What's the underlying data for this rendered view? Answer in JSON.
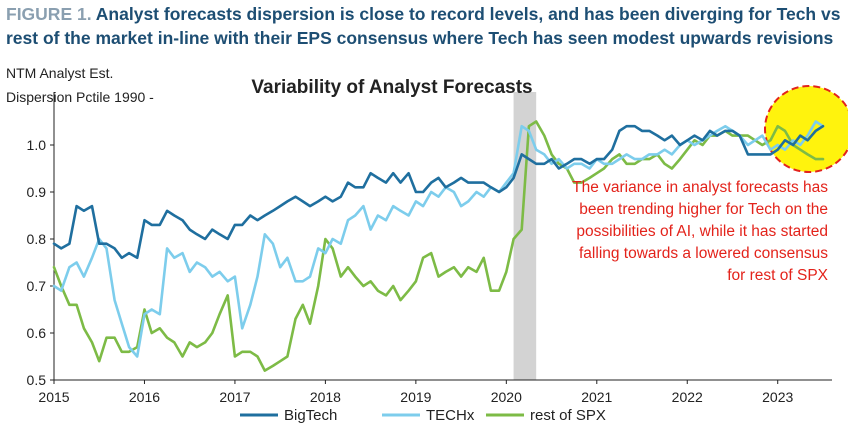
{
  "figure": {
    "label": "FIGURE 1.",
    "caption_line1": "Analyst forecasts dispersion is close to record levels, and has been diverging for Tech vs",
    "caption_line2": "rest of the market in-line with their EPS consensus where Tech has seen modest upwards revisions"
  },
  "colors": {
    "bigtech": "#1f6f9f",
    "techx": "#7dcdec",
    "rest_spx": "#7dbb46",
    "shade": "#d3d3d3",
    "annotation": "#e3231b",
    "highlight": "#fff200",
    "header": "#1d4e73"
  },
  "chart_data": {
    "type": "line",
    "title": "Variability of Analyst Forecasts",
    "ylabel_line1": "NTM Analyst Est.",
    "ylabel_line2": "Dispersion Pctile 1990 -",
    "xlim": [
      2015,
      2023.6
    ],
    "ylim": [
      0.5,
      1.1
    ],
    "yticks": [
      0.5,
      0.6,
      0.7,
      0.8,
      0.9,
      1.0
    ],
    "ytick_labels": [
      "0.5",
      "0.6",
      "0.7",
      "0.8",
      "0.9",
      "1.0"
    ],
    "xticks": [
      2015,
      2016,
      2017,
      2018,
      2019,
      2020,
      2021,
      2022,
      2023
    ],
    "xtick_labels": [
      "2015",
      "2016",
      "2017",
      "2018",
      "2019",
      "2020",
      "2021",
      "2022",
      "2023"
    ],
    "shaded_region": [
      2020.08,
      2020.33
    ],
    "series": [
      {
        "name": "BigTech",
        "color_key": "bigtech",
        "x": [
          2015.0,
          2015.08,
          2015.17,
          2015.25,
          2015.33,
          2015.42,
          2015.5,
          2015.58,
          2015.67,
          2015.75,
          2015.83,
          2015.92,
          2016.0,
          2016.08,
          2016.17,
          2016.25,
          2016.33,
          2016.42,
          2016.5,
          2016.58,
          2016.67,
          2016.75,
          2016.83,
          2016.92,
          2017.0,
          2017.08,
          2017.17,
          2017.25,
          2017.33,
          2017.42,
          2017.5,
          2017.58,
          2017.67,
          2017.75,
          2017.83,
          2017.92,
          2018.0,
          2018.08,
          2018.17,
          2018.25,
          2018.33,
          2018.42,
          2018.5,
          2018.58,
          2018.67,
          2018.75,
          2018.83,
          2018.92,
          2019.0,
          2019.08,
          2019.17,
          2019.25,
          2019.33,
          2019.42,
          2019.5,
          2019.58,
          2019.67,
          2019.75,
          2019.83,
          2019.92,
          2020.0,
          2020.08,
          2020.17,
          2020.25,
          2020.33,
          2020.42,
          2020.5,
          2020.58,
          2020.67,
          2020.75,
          2020.83,
          2020.92,
          2021.0,
          2021.08,
          2021.17,
          2021.25,
          2021.33,
          2021.42,
          2021.5,
          2021.58,
          2021.67,
          2021.75,
          2021.83,
          2021.92,
          2022.0,
          2022.08,
          2022.17,
          2022.25,
          2022.33,
          2022.42,
          2022.5,
          2022.58,
          2022.67,
          2022.75,
          2022.83,
          2022.92,
          2023.0,
          2023.08,
          2023.17,
          2023.25,
          2023.33,
          2023.42,
          2023.5
        ],
        "values": [
          0.79,
          0.78,
          0.79,
          0.87,
          0.86,
          0.87,
          0.79,
          0.79,
          0.78,
          0.76,
          0.77,
          0.76,
          0.84,
          0.83,
          0.83,
          0.86,
          0.85,
          0.84,
          0.82,
          0.81,
          0.8,
          0.82,
          0.81,
          0.8,
          0.83,
          0.83,
          0.85,
          0.84,
          0.85,
          0.86,
          0.87,
          0.88,
          0.89,
          0.88,
          0.87,
          0.88,
          0.89,
          0.88,
          0.89,
          0.92,
          0.91,
          0.91,
          0.94,
          0.93,
          0.92,
          0.94,
          0.92,
          0.94,
          0.9,
          0.9,
          0.92,
          0.93,
          0.91,
          0.92,
          0.93,
          0.92,
          0.92,
          0.92,
          0.91,
          0.9,
          0.91,
          0.93,
          0.98,
          0.97,
          0.96,
          0.96,
          0.97,
          0.95,
          0.96,
          0.97,
          0.97,
          0.96,
          0.97,
          0.97,
          0.99,
          1.03,
          1.04,
          1.04,
          1.03,
          1.03,
          1.02,
          1.01,
          1.02,
          1.0,
          1.01,
          1.02,
          1.01,
          1.03,
          1.02,
          1.03,
          1.03,
          1.02,
          0.98,
          0.98,
          0.98,
          0.98,
          0.99,
          1.01,
          1.0,
          1.02,
          1.01,
          1.03,
          1.04
        ]
      },
      {
        "name": "TECHx",
        "color_key": "techx",
        "x": [
          2015.0,
          2015.08,
          2015.17,
          2015.25,
          2015.33,
          2015.42,
          2015.5,
          2015.58,
          2015.67,
          2015.75,
          2015.83,
          2015.92,
          2016.0,
          2016.08,
          2016.17,
          2016.25,
          2016.33,
          2016.42,
          2016.5,
          2016.58,
          2016.67,
          2016.75,
          2016.83,
          2016.92,
          2017.0,
          2017.08,
          2017.17,
          2017.25,
          2017.33,
          2017.42,
          2017.5,
          2017.58,
          2017.67,
          2017.75,
          2017.83,
          2017.92,
          2018.0,
          2018.08,
          2018.17,
          2018.25,
          2018.33,
          2018.42,
          2018.5,
          2018.58,
          2018.67,
          2018.75,
          2018.83,
          2018.92,
          2019.0,
          2019.08,
          2019.17,
          2019.25,
          2019.33,
          2019.42,
          2019.5,
          2019.58,
          2019.67,
          2019.75,
          2019.83,
          2019.92,
          2020.0,
          2020.08,
          2020.17,
          2020.25,
          2020.33,
          2020.42,
          2020.5,
          2020.58,
          2020.67,
          2020.75,
          2020.83,
          2020.92,
          2021.0,
          2021.08,
          2021.17,
          2021.25,
          2021.33,
          2021.42,
          2021.5,
          2021.58,
          2021.67,
          2021.75,
          2021.83,
          2021.92,
          2022.0,
          2022.08,
          2022.17,
          2022.25,
          2022.33,
          2022.42,
          2022.5,
          2022.58,
          2022.67,
          2022.75,
          2022.83,
          2022.92,
          2023.0,
          2023.08,
          2023.17,
          2023.25,
          2023.33,
          2023.42,
          2023.5
        ],
        "values": [
          0.7,
          0.69,
          0.74,
          0.75,
          0.72,
          0.76,
          0.8,
          0.78,
          0.67,
          0.62,
          0.57,
          0.55,
          0.64,
          0.65,
          0.64,
          0.78,
          0.76,
          0.77,
          0.73,
          0.75,
          0.74,
          0.72,
          0.73,
          0.71,
          0.72,
          0.61,
          0.66,
          0.72,
          0.81,
          0.79,
          0.74,
          0.76,
          0.71,
          0.71,
          0.72,
          0.78,
          0.77,
          0.8,
          0.79,
          0.84,
          0.85,
          0.87,
          0.82,
          0.85,
          0.84,
          0.87,
          0.86,
          0.85,
          0.88,
          0.87,
          0.9,
          0.89,
          0.91,
          0.9,
          0.87,
          0.88,
          0.9,
          0.89,
          0.91,
          0.9,
          0.92,
          0.94,
          1.04,
          1.03,
          0.99,
          0.98,
          0.96,
          0.97,
          0.95,
          0.96,
          0.96,
          0.95,
          0.97,
          0.96,
          0.96,
          0.97,
          0.98,
          0.97,
          0.97,
          0.98,
          0.98,
          0.99,
          0.98,
          1.0,
          1.01,
          1.0,
          1.01,
          1.02,
          1.03,
          1.04,
          1.03,
          1.02,
          1.0,
          1.01,
          1.02,
          0.99,
          1.0,
          0.99,
          1.01,
          1.0,
          1.02,
          1.05,
          1.04
        ]
      },
      {
        "name": "rest of SPX",
        "color_key": "rest_spx",
        "x": [
          2015.0,
          2015.08,
          2015.17,
          2015.25,
          2015.33,
          2015.42,
          2015.5,
          2015.58,
          2015.67,
          2015.75,
          2015.83,
          2015.92,
          2016.0,
          2016.08,
          2016.17,
          2016.25,
          2016.33,
          2016.42,
          2016.5,
          2016.58,
          2016.67,
          2016.75,
          2016.83,
          2016.92,
          2017.0,
          2017.08,
          2017.17,
          2017.25,
          2017.33,
          2017.42,
          2017.5,
          2017.58,
          2017.67,
          2017.75,
          2017.83,
          2017.92,
          2018.0,
          2018.08,
          2018.17,
          2018.25,
          2018.33,
          2018.42,
          2018.5,
          2018.58,
          2018.67,
          2018.75,
          2018.83,
          2018.92,
          2019.0,
          2019.08,
          2019.17,
          2019.25,
          2019.33,
          2019.42,
          2019.5,
          2019.58,
          2019.67,
          2019.75,
          2019.83,
          2019.92,
          2020.0,
          2020.08,
          2020.17,
          2020.25,
          2020.33,
          2020.42,
          2020.5,
          2020.58,
          2020.67,
          2020.75,
          2020.83,
          2020.92,
          2021.0,
          2021.08,
          2021.17,
          2021.25,
          2021.33,
          2021.42,
          2021.5,
          2021.58,
          2021.67,
          2021.75,
          2021.83,
          2021.92,
          2022.0,
          2022.08,
          2022.17,
          2022.25,
          2022.33,
          2022.42,
          2022.5,
          2022.58,
          2022.67,
          2022.75,
          2022.83,
          2022.92,
          2023.0,
          2023.08,
          2023.17,
          2023.25,
          2023.33,
          2023.42,
          2023.5
        ],
        "values": [
          0.74,
          0.7,
          0.66,
          0.66,
          0.61,
          0.58,
          0.54,
          0.59,
          0.59,
          0.56,
          0.56,
          0.57,
          0.65,
          0.6,
          0.61,
          0.59,
          0.58,
          0.55,
          0.58,
          0.57,
          0.58,
          0.6,
          0.64,
          0.68,
          0.55,
          0.56,
          0.56,
          0.55,
          0.52,
          0.53,
          0.54,
          0.55,
          0.63,
          0.66,
          0.62,
          0.7,
          0.8,
          0.78,
          0.72,
          0.74,
          0.72,
          0.7,
          0.71,
          0.69,
          0.68,
          0.7,
          0.67,
          0.69,
          0.71,
          0.76,
          0.77,
          0.72,
          0.73,
          0.74,
          0.72,
          0.74,
          0.73,
          0.76,
          0.69,
          0.69,
          0.73,
          0.8,
          0.82,
          1.04,
          1.05,
          1.02,
          0.98,
          0.96,
          0.95,
          0.92,
          0.92,
          0.93,
          0.94,
          0.95,
          0.97,
          0.98,
          0.96,
          0.96,
          0.97,
          0.97,
          0.98,
          0.96,
          0.95,
          0.97,
          0.99,
          1.01,
          1.0,
          1.02,
          1.02,
          1.03,
          1.02,
          1.02,
          1.02,
          1.01,
          1.0,
          1.01,
          1.04,
          1.03,
          1.0,
          0.99,
          0.98,
          0.97,
          0.97
        ]
      }
    ],
    "annotation": {
      "lines": [
        "The variance in analyst forecasts has",
        "been trending higher for Tech on the",
        "possibilities of AI, while it has started",
        "falling towards a lowered consensus",
        "for rest of SPX"
      ]
    },
    "legend_placement": "bottom",
    "grid": false
  }
}
